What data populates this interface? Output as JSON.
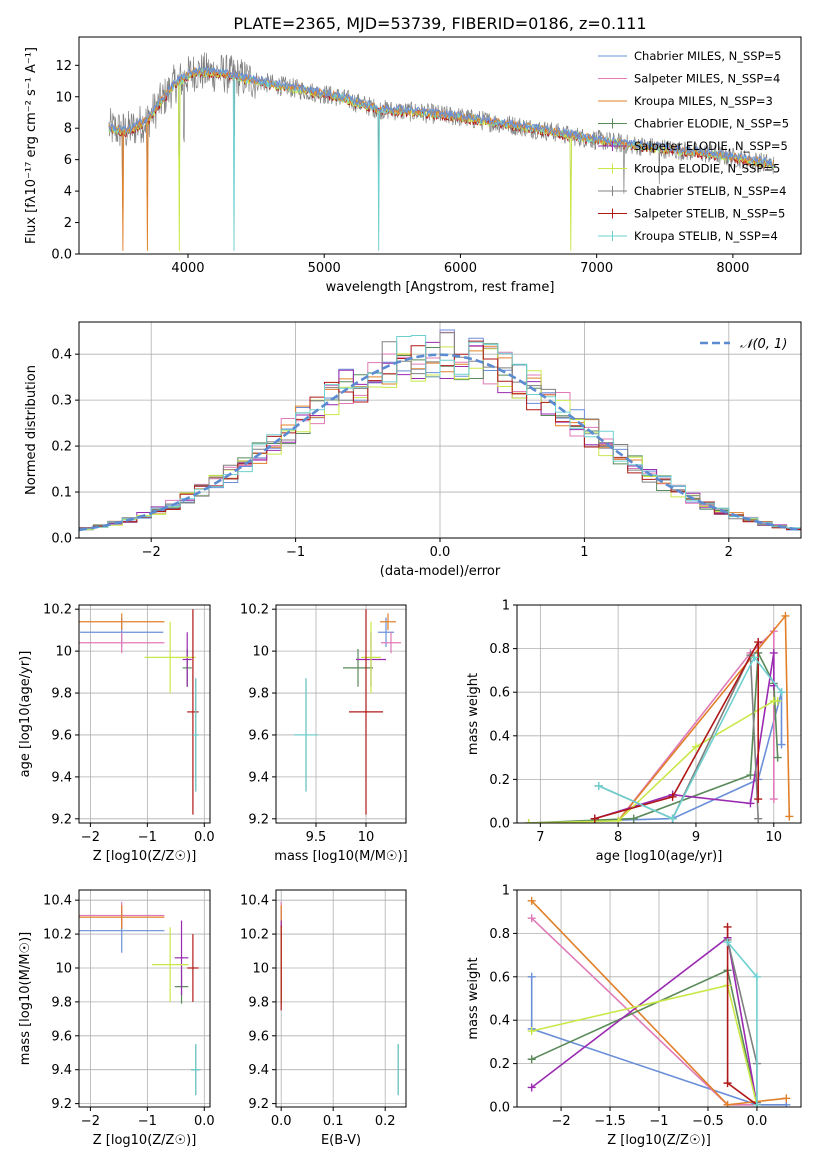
{
  "colors": {
    "Chabrier MILES": "#6a8fd8",
    "Salpeter MILES": "#e07ab8",
    "Kroupa MILES": "#e0802a",
    "Chabrier ELODIE": "#5a8a5a",
    "Salpeter ELODIE": "#9a2ab0",
    "Kroupa ELODIE": "#c8e84a",
    "Chabrier STELIB": "#808080",
    "Salpeter STELIB": "#b01818",
    "Kroupa STELIB": "#6ed0d0"
  },
  "chart_data": [
    {
      "id": "spectrum",
      "type": "line",
      "title": "PLATE=2365, MJD=53739, FIBERID=0186, z=0.111",
      "xlabel": "wavelength [Angstrom, rest frame]",
      "ylabel": "Flux [fλ10⁻¹⁷ erg cm⁻² s⁻¹ A⁻¹]",
      "xlim": [
        3200,
        8500
      ],
      "ylim": [
        0,
        13.8
      ],
      "xticks": [
        4000,
        5000,
        6000,
        7000,
        8000
      ],
      "yticks": [
        0,
        2,
        4,
        6,
        8,
        10,
        12
      ],
      "legend_position": "top-right",
      "legend": [
        "Chabrier MILES, N_SSP=5",
        "Salpeter MILES, N_SSP=4",
        "Kroupa MILES, N_SSP=3",
        "Chabrier ELODIE, N_SSP=5",
        "Salpeter ELODIE, N_SSP=5",
        "Kroupa ELODIE, N_SSP=5",
        "Chabrier STELIB, N_SSP=4",
        "Salpeter STELIB, N_SSP=5",
        "Kroupa STELIB, N_SSP=4"
      ],
      "continuum": {
        "x": [
          3420,
          3550,
          3700,
          3900,
          4050,
          4250,
          4500,
          4800,
          5100,
          5400,
          5700,
          6000,
          6300,
          6600,
          6900,
          7200,
          7500,
          7800,
          8100,
          8300
        ],
        "y": [
          8.0,
          7.8,
          8.5,
          10.8,
          11.6,
          11.5,
          11.0,
          10.5,
          10.0,
          9.2,
          9.0,
          8.7,
          8.3,
          7.9,
          7.4,
          7.0,
          6.7,
          6.4,
          6.0,
          5.7
        ]
      },
      "absorption_lines": [
        {
          "x": 3520,
          "depth": 7.6
        },
        {
          "x": 3700,
          "depth": 8.2
        },
        {
          "x": 3934,
          "depth": 8.5
        },
        {
          "x": 3970,
          "depth": 6.0
        },
        {
          "x": 4340,
          "depth": 5.5
        },
        {
          "x": 5400,
          "depth": 9.2
        },
        {
          "x": 6810,
          "depth": 7.4
        },
        {
          "x": 7200,
          "depth": 5.0
        },
        {
          "x": 7460,
          "depth": 4.0
        }
      ]
    },
    {
      "id": "residual-histogram",
      "type": "bar",
      "xlabel": "(data-model)/error",
      "ylabel": "Normed distribution",
      "xlim": [
        -2.5,
        2.5
      ],
      "ylim": [
        0,
        0.47
      ],
      "xticks": [
        -2,
        -1,
        0,
        1,
        2
      ],
      "yticks": [
        0.0,
        0.1,
        0.2,
        0.3,
        0.4
      ],
      "reference_label": "𝒩(0, 1)",
      "legend_position": "top-right",
      "bin_width": 0.1
    },
    {
      "id": "age-vs-metallicity",
      "type": "scatter",
      "xlabel": "Z [log10(Z/Z☉)]",
      "ylabel": "age  [log10(age/yr)]",
      "xlim": [
        -2.2,
        0.1
      ],
      "ylim": [
        9.18,
        10.22
      ],
      "xticks": [
        -2,
        -1,
        0
      ],
      "yticks": [
        9.2,
        9.4,
        9.6,
        9.8,
        10.0,
        10.2
      ],
      "series": [
        {
          "name": "Chabrier MILES",
          "x": -1.45,
          "y": 10.09,
          "xerr": 0.73,
          "yerr": 0.07
        },
        {
          "name": "Salpeter MILES",
          "x": -1.45,
          "y": 10.04,
          "xerr": 0.75,
          "yerr": 0.05
        },
        {
          "name": "Kroupa MILES",
          "x": -1.45,
          "y": 10.14,
          "xerr": 0.75,
          "yerr": 0.04
        },
        {
          "name": "Chabrier ELODIE",
          "x": -0.3,
          "y": 9.92,
          "xerr": 0.08,
          "yerr": 0.09
        },
        {
          "name": "Salpeter ELODIE",
          "x": -0.3,
          "y": 9.96,
          "xerr": 0.08,
          "yerr": 0.13
        },
        {
          "name": "Kroupa ELODIE",
          "x": -0.6,
          "y": 9.97,
          "xerr": 0.45,
          "yerr": 0.17
        },
        {
          "name": "Chabrier STELIB",
          "x": -0.15,
          "y": 9.6,
          "xerr": 0.05,
          "yerr": 0.27
        },
        {
          "name": "Salpeter STELIB",
          "x": -0.2,
          "y": 9.71,
          "xerr": 0.1,
          "yerr": 0.49
        },
        {
          "name": "Kroupa STELIB",
          "x": -0.15,
          "y": 9.6,
          "xerr": 0.05,
          "yerr": 0.27
        }
      ]
    },
    {
      "id": "age-vs-mass",
      "type": "scatter",
      "xlabel": "mass [log10(M/M☉)]",
      "ylabel": "",
      "xlim": [
        9.1,
        10.4
      ],
      "ylim": [
        9.18,
        10.22
      ],
      "xticks": [
        9.5,
        10.0
      ],
      "yticks": [
        9.2,
        9.4,
        9.6,
        9.8,
        10.0,
        10.2
      ],
      "series": [
        {
          "name": "Chabrier MILES",
          "x": 10.2,
          "y": 10.09,
          "xerr": 0.08,
          "yerr": 0.07
        },
        {
          "name": "Salpeter MILES",
          "x": 10.25,
          "y": 10.04,
          "xerr": 0.1,
          "yerr": 0.05
        },
        {
          "name": "Kroupa MILES",
          "x": 10.22,
          "y": 10.14,
          "xerr": 0.08,
          "yerr": 0.04
        },
        {
          "name": "Chabrier ELODIE",
          "x": 9.92,
          "y": 9.92,
          "xerr": 0.15,
          "yerr": 0.09
        },
        {
          "name": "Salpeter ELODIE",
          "x": 10.05,
          "y": 9.96,
          "xerr": 0.15,
          "yerr": 0.13
        },
        {
          "name": "Kroupa ELODIE",
          "x": 10.05,
          "y": 9.97,
          "xerr": 0.1,
          "yerr": 0.17
        },
        {
          "name": "Chabrier STELIB",
          "x": 9.4,
          "y": 9.6,
          "xerr": 0.12,
          "yerr": 0.27
        },
        {
          "name": "Salpeter STELIB",
          "x": 10.0,
          "y": 9.71,
          "xerr": 0.17,
          "yerr": 0.49
        },
        {
          "name": "Kroupa STELIB",
          "x": 9.4,
          "y": 9.6,
          "xerr": 0.12,
          "yerr": 0.27
        }
      ]
    },
    {
      "id": "mass-weight-vs-age",
      "type": "line",
      "xlabel": "age  [log10(age/yr)]",
      "ylabel": "mass weight",
      "xlim": [
        6.7,
        10.35
      ],
      "ylim": [
        0,
        1
      ],
      "xticks": [
        7,
        8,
        9,
        10
      ],
      "yticks": [
        0.0,
        0.2,
        0.4,
        0.6,
        0.8,
        1.0
      ],
      "series": [
        {
          "name": "Chabrier MILES",
          "x": [
            7.7,
            8.7,
            9.8,
            10.1,
            10.1
          ],
          "y": [
            0.01,
            0.02,
            0.2,
            0.6,
            0.36
          ]
        },
        {
          "name": "Salpeter MILES",
          "x": [
            8.0,
            9.7,
            10.0,
            10.0
          ],
          "y": [
            0.01,
            0.78,
            0.88,
            0.11
          ]
        },
        {
          "name": "Kroupa MILES",
          "x": [
            8.0,
            10.15,
            10.2
          ],
          "y": [
            0.01,
            0.95,
            0.03
          ]
        },
        {
          "name": "Chabrier ELODIE",
          "x": [
            6.85,
            8.2,
            9.7,
            9.8,
            10.0,
            10.05
          ],
          "y": [
            0.0,
            0.02,
            0.22,
            0.78,
            0.64,
            0.3
          ]
        },
        {
          "name": "Salpeter ELODIE",
          "x": [
            7.7,
            8.7,
            9.7,
            10.0,
            10.0
          ],
          "y": [
            0.02,
            0.13,
            0.09,
            0.78,
            0.63
          ]
        },
        {
          "name": "Kroupa ELODIE",
          "x": [
            6.85,
            8.0,
            9.0,
            10.0,
            10.05
          ],
          "y": [
            0.0,
            0.01,
            0.35,
            0.56,
            0.56
          ]
        },
        {
          "name": "Chabrier STELIB",
          "x": [
            7.75,
            8.7,
            9.7,
            9.8
          ],
          "y": [
            0.17,
            0.02,
            0.77,
            0.02
          ]
        },
        {
          "name": "Salpeter STELIB",
          "x": [
            7.7,
            8.7,
            9.8,
            9.8
          ],
          "y": [
            0.02,
            0.12,
            0.83,
            0.11
          ]
        },
        {
          "name": "Kroupa STELIB",
          "x": [
            7.75,
            8.7,
            9.75,
            10.1
          ],
          "y": [
            0.17,
            0.02,
            0.76,
            0.6
          ]
        }
      ]
    },
    {
      "id": "mass-vs-metallicity",
      "type": "scatter",
      "xlabel": "Z [log10(Z/Z☉)]",
      "ylabel": "mass [log10(M/M☉)]",
      "xlim": [
        -2.2,
        0.1
      ],
      "ylim": [
        9.18,
        10.46
      ],
      "xticks": [
        -2,
        -1,
        0
      ],
      "yticks": [
        9.2,
        9.4,
        9.6,
        9.8,
        10.0,
        10.2,
        10.4
      ],
      "series": [
        {
          "name": "Chabrier MILES",
          "x": -1.45,
          "y": 10.22,
          "xerr": 0.75,
          "yerr": 0.13
        },
        {
          "name": "Salpeter MILES",
          "x": -1.45,
          "y": 10.31,
          "xerr": 0.75,
          "yerr": 0.08
        },
        {
          "name": "Kroupa MILES",
          "x": -1.45,
          "y": 10.3,
          "xerr": 0.75,
          "yerr": 0.07
        },
        {
          "name": "Chabrier ELODIE",
          "x": -0.4,
          "y": 9.89,
          "xerr": 0.12,
          "yerr": 0.1
        },
        {
          "name": "Salpeter ELODIE",
          "x": -0.4,
          "y": 10.06,
          "xerr": 0.12,
          "yerr": 0.22
        },
        {
          "name": "Kroupa ELODIE",
          "x": -0.6,
          "y": 10.02,
          "xerr": 0.32,
          "yerr": 0.22
        },
        {
          "name": "Chabrier STELIB",
          "x": -0.15,
          "y": 9.4,
          "xerr": 0.08,
          "yerr": 0.15
        },
        {
          "name": "Salpeter STELIB",
          "x": -0.2,
          "y": 10.0,
          "xerr": 0.1,
          "yerr": 0.2
        },
        {
          "name": "Kroupa STELIB",
          "x": -0.15,
          "y": 9.4,
          "xerr": 0.08,
          "yerr": 0.15
        }
      ]
    },
    {
      "id": "mass-vs-extinction",
      "type": "scatter",
      "xlabel": "E(B-V)",
      "ylabel": "",
      "xlim": [
        -0.01,
        0.24
      ],
      "ylim": [
        9.18,
        10.46
      ],
      "xticks": [
        0.0,
        0.1,
        0.2
      ],
      "yticks": [
        9.2,
        9.4,
        9.6,
        9.8,
        10.0,
        10.2,
        10.4
      ],
      "series": [
        {
          "name": "Chabrier MILES",
          "x": 0.0,
          "y": 10.22,
          "yerr": 0.13
        },
        {
          "name": "Salpeter MILES",
          "x": 0.0,
          "y": 10.31,
          "yerr": 0.08
        },
        {
          "name": "Kroupa MILES",
          "x": 0.0,
          "y": 10.3,
          "yerr": 0.07
        },
        {
          "name": "Chabrier ELODIE",
          "x": 0.0,
          "y": 9.89,
          "yerr": 0.1
        },
        {
          "name": "Salpeter ELODIE",
          "x": 0.0,
          "y": 10.06,
          "yerr": 0.22
        },
        {
          "name": "Kroupa ELODIE",
          "x": 0.0,
          "y": 10.02,
          "yerr": 0.22
        },
        {
          "name": "Chabrier STELIB",
          "x": 0.225,
          "y": 9.4,
          "yerr": 0.15
        },
        {
          "name": "Salpeter STELIB",
          "x": 0.0,
          "y": 10.0,
          "yerr": 0.25
        },
        {
          "name": "Kroupa STELIB",
          "x": 0.225,
          "y": 9.4,
          "yerr": 0.15
        }
      ]
    },
    {
      "id": "mass-weight-vs-metallicity",
      "type": "line",
      "xlabel": "Z [log10(Z/Z☉)]",
      "ylabel": "mass weight",
      "xlim": [
        -2.45,
        0.45
      ],
      "ylim": [
        0,
        1
      ],
      "xticks": [
        -2.0,
        -1.5,
        -1.0,
        -0.5,
        0.0
      ],
      "yticks": [
        0.0,
        0.2,
        0.4,
        0.6,
        0.8,
        1.0
      ],
      "series": [
        {
          "name": "Chabrier MILES",
          "x": [
            -2.3,
            -2.3,
            0.0,
            0.3
          ],
          "y": [
            0.6,
            0.36,
            0.01,
            0.01
          ]
        },
        {
          "name": "Salpeter MILES",
          "x": [
            -2.3,
            -0.3,
            0.0
          ],
          "y": [
            0.87,
            0.01,
            0.01
          ]
        },
        {
          "name": "Kroupa MILES",
          "x": [
            -2.3,
            -0.3,
            0.3
          ],
          "y": [
            0.95,
            0.01,
            0.04
          ]
        },
        {
          "name": "Chabrier ELODIE",
          "x": [
            -2.3,
            -0.3,
            0.0
          ],
          "y": [
            0.22,
            0.63,
            0.01
          ]
        },
        {
          "name": "Salpeter ELODIE",
          "x": [
            -2.3,
            -0.3,
            0.0
          ],
          "y": [
            0.09,
            0.78,
            0.01
          ]
        },
        {
          "name": "Kroupa ELODIE",
          "x": [
            -2.3,
            -0.3,
            0.0
          ],
          "y": [
            0.35,
            0.56,
            0.01
          ]
        },
        {
          "name": "Chabrier STELIB",
          "x": [
            -0.3,
            0.0,
            0.0
          ],
          "y": [
            0.77,
            0.2,
            0.02
          ]
        },
        {
          "name": "Salpeter STELIB",
          "x": [
            -0.3,
            -0.3,
            0.0
          ],
          "y": [
            0.83,
            0.11,
            0.01
          ]
        },
        {
          "name": "Kroupa STELIB",
          "x": [
            -0.3,
            0.0,
            0.0
          ],
          "y": [
            0.76,
            0.6,
            0.01
          ]
        }
      ]
    }
  ]
}
